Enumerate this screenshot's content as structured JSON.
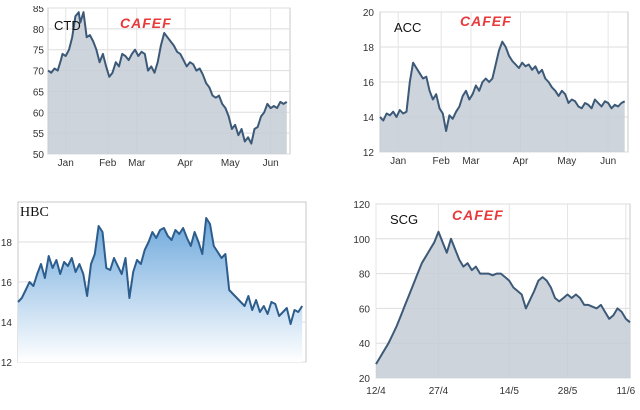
{
  "chart_data": [
    {
      "type": "area",
      "title": "CTD",
      "watermark": "CAFEF",
      "line_color": "#3c5a78",
      "fill_color": "#c5ccd6",
      "ylim": [
        50,
        85
      ],
      "yticks": [
        50,
        55,
        60,
        65,
        70,
        75,
        80,
        85
      ],
      "x_ticks": [
        {
          "label": "Jan",
          "x": 11
        },
        {
          "label": "Feb",
          "x": 37
        },
        {
          "label": "Mar",
          "x": 55
        },
        {
          "label": "Apr",
          "x": 85
        },
        {
          "label": "May",
          "x": 113
        },
        {
          "label": "Jun",
          "x": 138
        }
      ],
      "xlim": [
        0,
        150
      ],
      "x": [
        0,
        2,
        4,
        6,
        8,
        9,
        11,
        13,
        15,
        17,
        19,
        20,
        22,
        24,
        26,
        28,
        30,
        32,
        34,
        36,
        38,
        40,
        42,
        44,
        46,
        48,
        50,
        52,
        54,
        56,
        58,
        60,
        62,
        64,
        66,
        68,
        70,
        72,
        74,
        76,
        78,
        80,
        82,
        84,
        86,
        88,
        90,
        92,
        94,
        96,
        98,
        100,
        102,
        104,
        106,
        108,
        110,
        112,
        114,
        116,
        118,
        120,
        122,
        124,
        126,
        128,
        130,
        132,
        134,
        136,
        138,
        140,
        142,
        144,
        146,
        148
      ],
      "y": [
        70,
        69.5,
        70.5,
        70,
        72.5,
        74,
        73.5,
        75,
        78,
        83,
        84,
        81.5,
        84,
        78,
        78.5,
        77,
        75,
        72,
        74,
        71,
        68.5,
        69.5,
        72,
        71,
        74,
        73.5,
        72.5,
        74,
        75,
        73.5,
        74.5,
        74,
        70,
        71,
        69.5,
        72,
        76,
        79,
        78,
        77,
        76,
        74.5,
        74,
        72.5,
        71,
        72,
        71.5,
        70,
        70.5,
        69,
        67,
        66,
        64,
        63.5,
        64,
        62,
        61,
        59,
        56,
        57,
        54.5,
        56,
        53,
        54,
        52.5,
        56,
        56.5,
        59,
        60,
        62,
        61,
        61.5,
        61,
        62.5,
        62,
        62.5
      ]
    },
    {
      "type": "area",
      "title": "ACC",
      "watermark": "CAFEF",
      "line_color": "#3c5a78",
      "fill_color": "#c5ccd6",
      "ylim": [
        12,
        20
      ],
      "yticks": [
        12,
        14,
        16,
        18,
        20
      ],
      "x_ticks": [
        {
          "label": "Jan",
          "x": 11
        },
        {
          "label": "Feb",
          "x": 37
        },
        {
          "label": "Mar",
          "x": 55
        },
        {
          "label": "Apr",
          "x": 85
        },
        {
          "label": "May",
          "x": 113
        },
        {
          "label": "Jun",
          "x": 138
        }
      ],
      "xlim": [
        0,
        150
      ],
      "x": [
        0,
        2,
        4,
        6,
        8,
        10,
        12,
        14,
        16,
        18,
        20,
        22,
        24,
        26,
        28,
        30,
        32,
        34,
        36,
        38,
        40,
        42,
        44,
        46,
        48,
        50,
        52,
        54,
        56,
        58,
        60,
        62,
        64,
        66,
        68,
        70,
        72,
        74,
        76,
        78,
        80,
        82,
        84,
        86,
        88,
        90,
        92,
        94,
        96,
        98,
        100,
        102,
        104,
        106,
        108,
        110,
        112,
        114,
        116,
        118,
        120,
        122,
        124,
        126,
        128,
        130,
        132,
        134,
        136,
        138,
        140,
        142,
        144,
        146,
        148
      ],
      "y": [
        14,
        13.8,
        14.2,
        14.1,
        14.3,
        14,
        14.4,
        14.2,
        14.3,
        16,
        17.1,
        16.8,
        16.5,
        16.2,
        16.3,
        15.5,
        15,
        15.3,
        14.5,
        14.2,
        13.2,
        14.1,
        13.9,
        14.3,
        14.6,
        15.2,
        15.5,
        15,
        15.3,
        15.8,
        15.5,
        16,
        16.2,
        16,
        16.2,
        17,
        17.8,
        18.3,
        18,
        17.5,
        17.2,
        17,
        16.8,
        17.1,
        16.9,
        17,
        16.7,
        16.9,
        16.5,
        16.7,
        16.2,
        16,
        15.7,
        15.5,
        15.2,
        15.5,
        15.3,
        14.8,
        15,
        14.9,
        14.6,
        14.5,
        14.8,
        14.7,
        14.5,
        15,
        14.8,
        14.6,
        14.9,
        14.8,
        14.5,
        14.7,
        14.6,
        14.8,
        14.9
      ]
    },
    {
      "type": "area",
      "title": "HBC",
      "line_color": "#2d5d8c",
      "fill_color": "#6da8dc",
      "ylim": [
        12,
        20
      ],
      "yticks": [
        12,
        14,
        16,
        18
      ],
      "xlim": [
        0,
        150
      ],
      "x": [
        0,
        2,
        4,
        6,
        8,
        10,
        12,
        14,
        16,
        18,
        20,
        22,
        24,
        26,
        28,
        30,
        32,
        34,
        36,
        38,
        40,
        42,
        44,
        46,
        48,
        50,
        52,
        54,
        56,
        58,
        60,
        62,
        64,
        66,
        68,
        70,
        72,
        74,
        76,
        78,
        80,
        82,
        84,
        86,
        88,
        90,
        92,
        94,
        96,
        98,
        100,
        102,
        104,
        106,
        108,
        110,
        112,
        114,
        116,
        118,
        120,
        122,
        124,
        126,
        128,
        130,
        132,
        134,
        136,
        138,
        140,
        142,
        144,
        146,
        148
      ],
      "y": [
        15,
        15.2,
        15.6,
        16,
        15.8,
        16.4,
        16.9,
        16.2,
        17.3,
        16.7,
        17.1,
        16.4,
        17,
        16.8,
        17.2,
        16.5,
        16.9,
        16.4,
        15.3,
        16.9,
        17.4,
        18.8,
        18.5,
        16.7,
        16.6,
        17.2,
        16.8,
        16.4,
        17.2,
        15.2,
        16.5,
        17.1,
        16.9,
        17.6,
        18,
        18.5,
        18.2,
        18.6,
        18.7,
        18.3,
        18.1,
        18.6,
        18.4,
        18.7,
        18.2,
        17.8,
        18.5,
        18,
        17.4,
        19.2,
        18.9,
        17.8,
        17.5,
        17.2,
        17.4,
        15.6,
        15.4,
        15.2,
        15,
        14.8,
        15.3,
        14.6,
        15.1,
        14.5,
        14.8,
        14.4,
        15,
        14.9,
        14.3,
        14.5,
        14.7,
        13.9,
        14.6,
        14.5,
        14.8
      ]
    },
    {
      "type": "area",
      "title": "SCG",
      "watermark": "CAFEF",
      "line_color": "#3c5a78",
      "fill_color": "#c5ccd6",
      "ylim": [
        20,
        120
      ],
      "yticks": [
        20,
        40,
        60,
        80,
        100,
        120
      ],
      "x_ticks": [
        {
          "label": "12/4",
          "x": 0
        },
        {
          "label": "27/4",
          "x": 15
        },
        {
          "label": "14/5",
          "x": 32
        },
        {
          "label": "28/5",
          "x": 46
        },
        {
          "label": "11/6",
          "x": 60
        }
      ],
      "xlim": [
        0,
        61
      ],
      "x": [
        0,
        1,
        2,
        3,
        4,
        5,
        6,
        7,
        8,
        9,
        10,
        11,
        12,
        13,
        14,
        15,
        16,
        17,
        18,
        19,
        20,
        21,
        22,
        23,
        24,
        25,
        26,
        27,
        28,
        29,
        30,
        31,
        32,
        33,
        34,
        35,
        36,
        37,
        38,
        39,
        40,
        41,
        42,
        43,
        44,
        45,
        46,
        47,
        48,
        49,
        50,
        51,
        52,
        53,
        54,
        55,
        56,
        57,
        58,
        59,
        60,
        61
      ],
      "y": [
        28,
        32,
        36,
        40,
        45,
        50,
        56,
        62,
        68,
        74,
        80,
        86,
        90,
        94,
        98,
        104,
        98,
        92,
        100,
        94,
        88,
        84,
        86,
        82,
        84,
        80,
        80,
        80,
        79,
        80,
        80,
        78,
        76,
        72,
        70,
        68,
        60,
        65,
        70,
        76,
        78,
        76,
        72,
        66,
        64,
        66,
        68,
        66,
        68,
        66,
        62,
        62,
        61,
        60,
        62,
        58,
        54,
        56,
        60,
        58,
        54,
        52
      ]
    }
  ]
}
